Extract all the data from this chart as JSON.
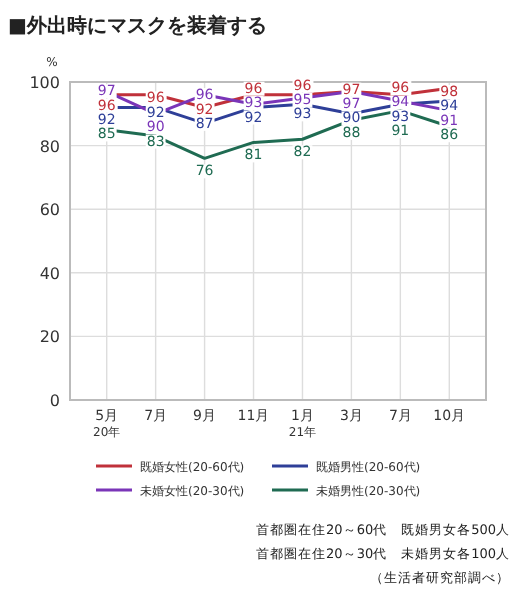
{
  "chart_data": {
    "type": "line",
    "title": "■外出時にマスクを装着する",
    "ylabel": "%",
    "categories": [
      "5月\n20年",
      "7月",
      "9月",
      "11月",
      "1月\n21年",
      "3月",
      "7月",
      "10月"
    ],
    "series": [
      {
        "name": "既婚女性(20-60代)",
        "color": "#c0313a",
        "values": [
          96,
          96,
          92,
          96,
          96,
          97,
          96,
          98
        ]
      },
      {
        "name": "既婚男性(20-60代)",
        "color": "#2e3f98",
        "values": [
          92,
          92,
          87,
          92,
          93,
          90,
          93,
          94
        ]
      },
      {
        "name": "未婚女性(20-30代)",
        "color": "#7a35b8",
        "values": [
          97,
          90,
          96,
          93,
          95,
          97,
          94,
          91
        ]
      },
      {
        "name": "未婚男性(20-30代)",
        "color": "#1f6b52",
        "values": [
          85,
          83,
          76,
          81,
          82,
          88,
          91,
          86
        ]
      }
    ],
    "ylim": [
      0,
      100
    ],
    "yticks": [
      0,
      20,
      40,
      60,
      80,
      100
    ],
    "grid": true,
    "legend": "bottom",
    "data_labels": true,
    "annotations": [
      "首都圏在住20～60代　既婚男女各500人",
      "首都圏在住20～30代　未婚男女各100人",
      "（生活者研究部調べ）"
    ]
  }
}
